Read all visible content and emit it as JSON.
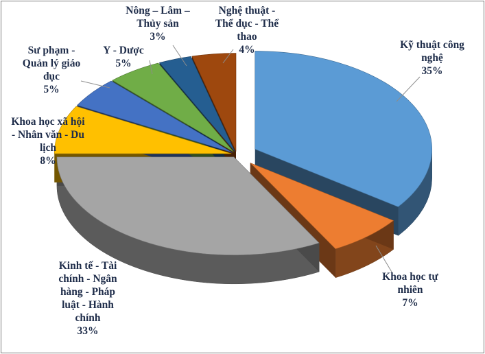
{
  "chart_data": {
    "type": "pie",
    "style": "3d-exploded",
    "title": "",
    "unit": "%",
    "slices": [
      {
        "name": "Kỹ thuật công nghệ",
        "value": 35,
        "percent_label": "35%",
        "color": "#5b9bd5",
        "label_lines": [
          "Kỹ thuật công",
          "nghệ"
        ]
      },
      {
        "name": "Khoa học tự nhiên",
        "value": 7,
        "percent_label": "7%",
        "color": "#ed7d31",
        "label_lines": [
          "Khoa học tự",
          "nhiên"
        ]
      },
      {
        "name": "Kinh tế - Tài chính - Ngân hàng - Pháp luật - Hành chính",
        "value": 33,
        "percent_label": "33%",
        "color": "#a5a5a5",
        "label_lines": [
          "Kinh tế - Tài",
          "chính - Ngân",
          "hàng - Pháp",
          "luật - Hành",
          "chính"
        ]
      },
      {
        "name": "Khoa học xã hội - Nhân văn - Du lịch",
        "value": 8,
        "percent_label": "8%",
        "color": "#ffc000",
        "label_lines": [
          "Khoa học xã hội",
          "- Nhân văn - Du",
          "lịch"
        ]
      },
      {
        "name": "Sư phạm - Quản lý giáo dục",
        "value": 5,
        "percent_label": "5%",
        "color": "#4472c4",
        "label_lines": [
          "Sư phạm -",
          "Quản lý giáo",
          "dục"
        ]
      },
      {
        "name": "Y - Dược",
        "value": 5,
        "percent_label": "5%",
        "color": "#70ad47",
        "label_lines": [
          "Y - Dược"
        ]
      },
      {
        "name": "Nông – Lâm – Thủy sản",
        "value": 3,
        "percent_label": "3%",
        "color": "#255e91",
        "label_lines": [
          "Nông – Lâm –",
          "Thủy sản"
        ]
      },
      {
        "name": "Nghệ thuật - Thể dục - Thể thao",
        "value": 4,
        "percent_label": "4%",
        "color": "#9e480e",
        "label_lines": [
          "Nghệ thuật -",
          "Thể dục - Thể",
          "thao"
        ]
      }
    ],
    "legend": "none",
    "data_labels": "category-and-percent, outside with leader lines"
  }
}
